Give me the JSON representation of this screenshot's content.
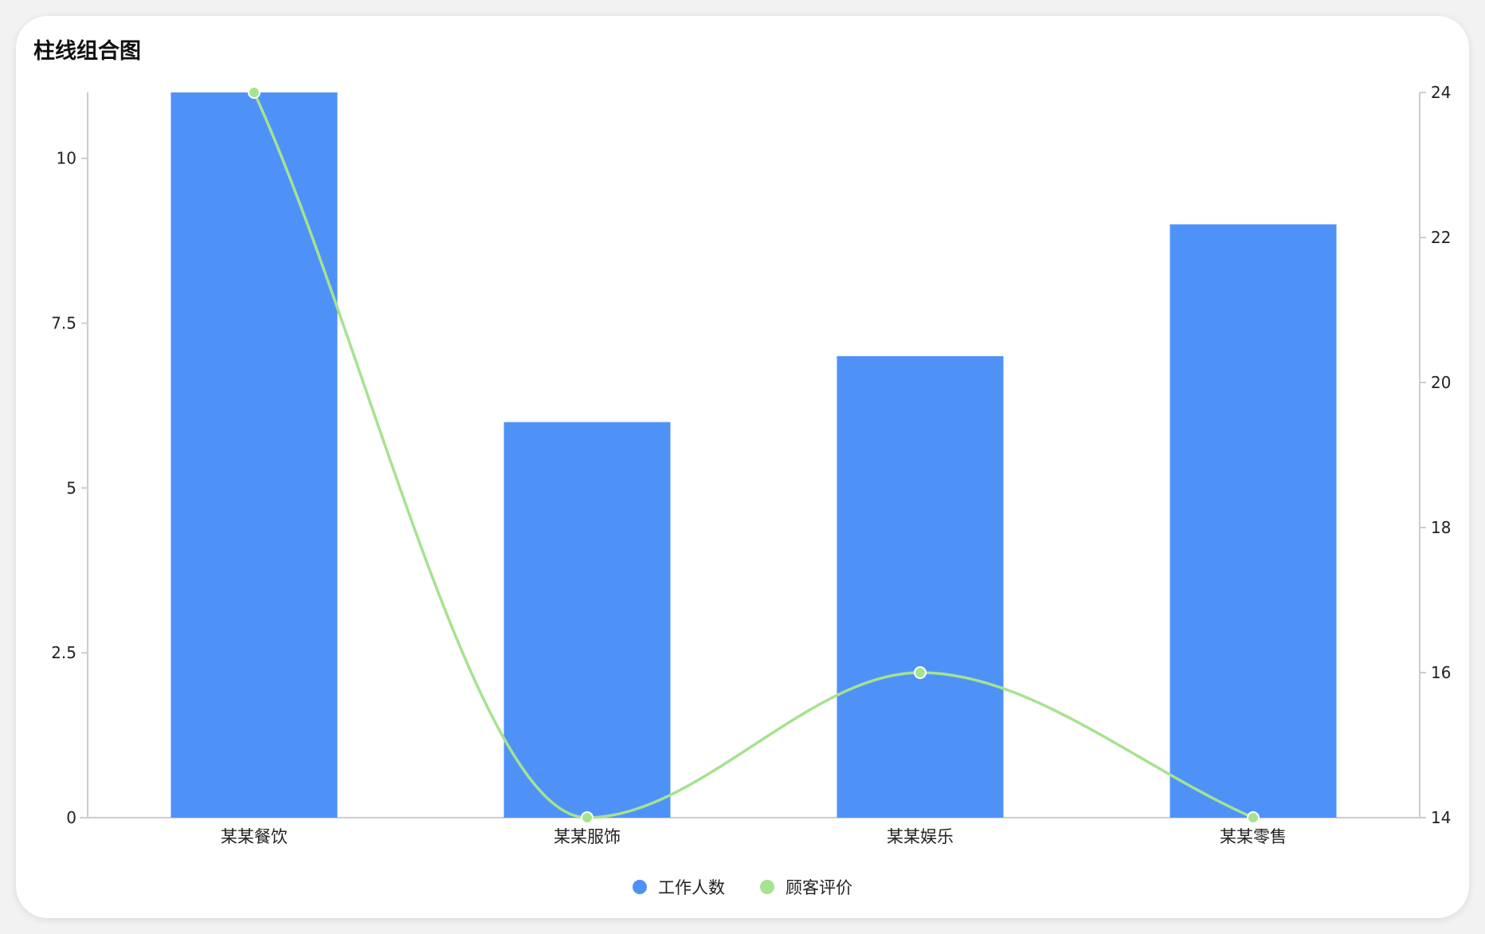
{
  "chart_data": {
    "type": "bar",
    "title": "柱线组合图",
    "categories": [
      "某某餐饮",
      "某某服饰",
      "某某娱乐",
      "某某零售"
    ],
    "series": [
      {
        "name": "工作人数",
        "type": "bar",
        "axis": "left",
        "values": [
          11,
          6,
          7,
          9
        ],
        "color": "#4F92F7"
      },
      {
        "name": "顾客评价",
        "type": "line",
        "smooth": true,
        "axis": "right",
        "values": [
          24,
          14,
          16,
          14
        ],
        "color": "#A6E28F"
      }
    ],
    "y_left": {
      "range": [
        0,
        11
      ],
      "ticks": [
        "0",
        "2.5",
        "5",
        "7.5",
        "10"
      ]
    },
    "y_right": {
      "range": [
        14,
        24
      ],
      "ticks": [
        "14",
        "16",
        "18",
        "20",
        "22",
        "24"
      ]
    },
    "legend_position": "bottom-center",
    "grid": false
  }
}
